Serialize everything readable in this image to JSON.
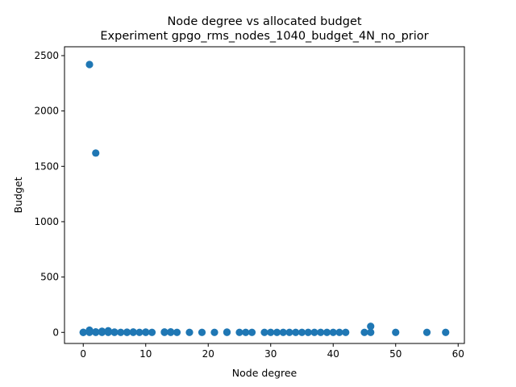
{
  "chart_data": {
    "type": "scatter",
    "title": "Node degree vs allocated budget",
    "subtitle": "Experiment gpgo_rms_nodes_1040_budget_4N_no_prior",
    "xlabel": "Node degree",
    "ylabel": "Budget",
    "xlim": [
      -3,
      61
    ],
    "ylim": [
      -100,
      2580
    ],
    "xticks": [
      0,
      10,
      20,
      30,
      40,
      50,
      60
    ],
    "yticks": [
      0,
      500,
      1000,
      1500,
      2000,
      2500
    ],
    "marker_color": "#1f77b4",
    "points": [
      [
        1,
        2420
      ],
      [
        2,
        1620
      ],
      [
        0,
        0
      ],
      [
        0,
        0
      ],
      [
        1,
        0
      ],
      [
        1,
        20
      ],
      [
        1,
        5
      ],
      [
        2,
        0
      ],
      [
        2,
        5
      ],
      [
        3,
        0
      ],
      [
        3,
        10
      ],
      [
        3,
        5
      ],
      [
        4,
        0
      ],
      [
        4,
        8
      ],
      [
        4,
        15
      ],
      [
        5,
        0
      ],
      [
        5,
        3
      ],
      [
        6,
        0
      ],
      [
        7,
        0
      ],
      [
        7,
        2
      ],
      [
        8,
        0
      ],
      [
        8,
        4
      ],
      [
        9,
        0
      ],
      [
        10,
        0
      ],
      [
        10,
        3
      ],
      [
        11,
        0
      ],
      [
        13,
        0
      ],
      [
        13,
        4
      ],
      [
        14,
        0
      ],
      [
        14,
        5
      ],
      [
        15,
        0
      ],
      [
        17,
        0
      ],
      [
        19,
        0
      ],
      [
        21,
        0
      ],
      [
        23,
        0
      ],
      [
        23,
        3
      ],
      [
        25,
        0
      ],
      [
        26,
        0
      ],
      [
        27,
        0
      ],
      [
        29,
        0
      ],
      [
        30,
        0
      ],
      [
        31,
        0
      ],
      [
        32,
        0
      ],
      [
        33,
        0
      ],
      [
        34,
        0
      ],
      [
        35,
        0
      ],
      [
        36,
        0
      ],
      [
        37,
        0
      ],
      [
        38,
        0
      ],
      [
        39,
        0
      ],
      [
        40,
        0
      ],
      [
        41,
        0
      ],
      [
        42,
        0
      ],
      [
        45,
        0
      ],
      [
        46,
        55
      ],
      [
        46,
        0
      ],
      [
        50,
        0
      ],
      [
        55,
        0
      ],
      [
        58,
        0
      ]
    ]
  }
}
